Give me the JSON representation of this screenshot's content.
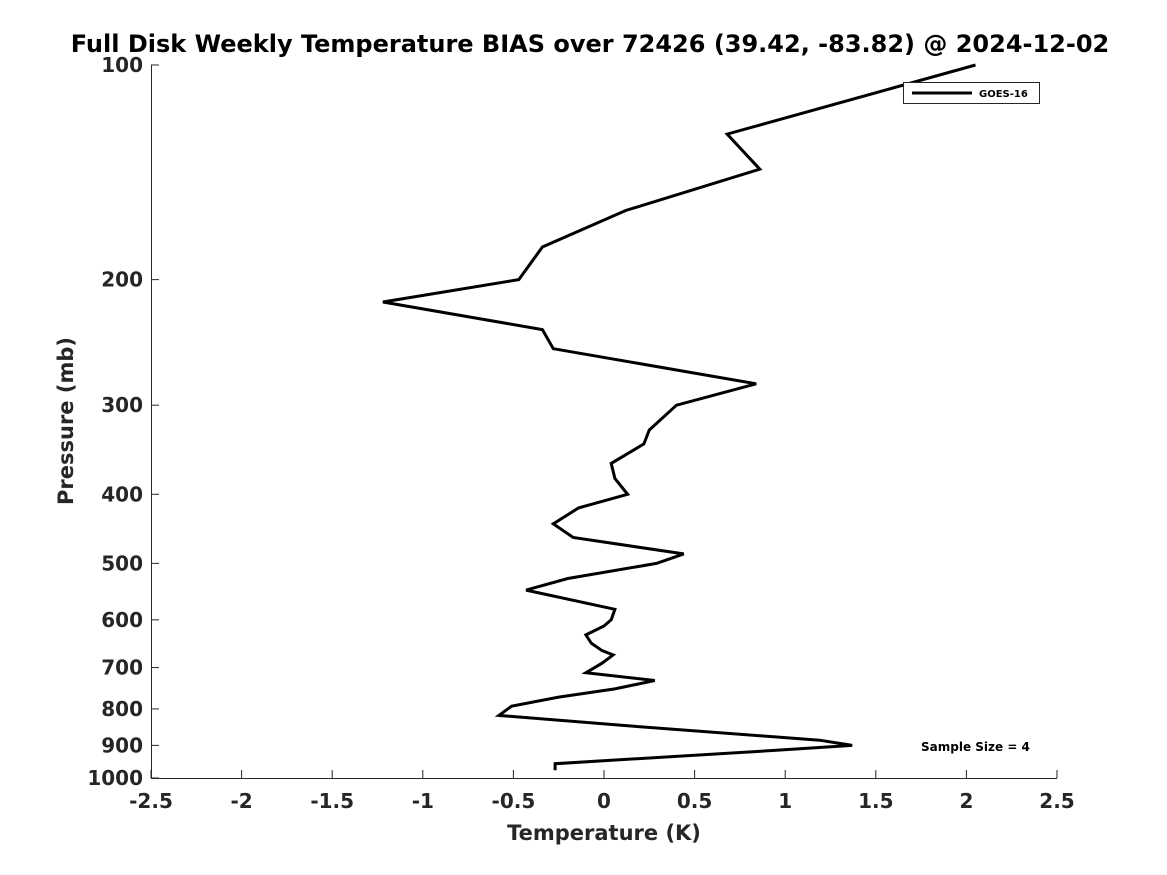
{
  "chart_data": {
    "type": "line",
    "title": "Full Disk Weekly Temperature BIAS over 72426 (39.42, -83.82) @ 2024-12-02",
    "xlabel": "Temperature (K)",
    "ylabel": "Pressure (mb)",
    "xlim": [
      -2.5,
      2.5
    ],
    "ylim": [
      100,
      1000
    ],
    "y_scale": "log",
    "y_reversed": true,
    "x_ticks": [
      -2.5,
      -2,
      -1.5,
      -1,
      -0.5,
      0,
      0.5,
      1,
      1.5,
      2,
      2.5
    ],
    "x_tick_labels": [
      "-2.5",
      "-2",
      "-1.5",
      "-1",
      "-0.5",
      "0",
      "0.5",
      "1",
      "1.5",
      "2",
      "2.5"
    ],
    "y_ticks": [
      100,
      200,
      300,
      400,
      500,
      600,
      700,
      800,
      900,
      1000
    ],
    "y_tick_labels": [
      "100",
      "200",
      "300",
      "400",
      "500",
      "600",
      "700",
      "800",
      "900",
      "1000"
    ],
    "grid": false,
    "legend_position": "top-right",
    "series": [
      {
        "name": "GOES-16",
        "color": "#000000",
        "points": [
          {
            "x": 2.05,
            "p": 100
          },
          {
            "x": 0.68,
            "p": 125
          },
          {
            "x": 0.86,
            "p": 140
          },
          {
            "x": 0.12,
            "p": 160
          },
          {
            "x": -0.34,
            "p": 180
          },
          {
            "x": -0.47,
            "p": 200
          },
          {
            "x": -1.22,
            "p": 215
          },
          {
            "x": -0.34,
            "p": 235
          },
          {
            "x": -0.28,
            "p": 250
          },
          {
            "x": 0.84,
            "p": 280
          },
          {
            "x": 0.4,
            "p": 300
          },
          {
            "x": 0.25,
            "p": 325
          },
          {
            "x": 0.22,
            "p": 340
          },
          {
            "x": 0.04,
            "p": 362
          },
          {
            "x": 0.06,
            "p": 380
          },
          {
            "x": 0.13,
            "p": 400
          },
          {
            "x": -0.14,
            "p": 418
          },
          {
            "x": -0.28,
            "p": 440
          },
          {
            "x": -0.17,
            "p": 460
          },
          {
            "x": 0.44,
            "p": 485
          },
          {
            "x": 0.29,
            "p": 500
          },
          {
            "x": -0.2,
            "p": 525
          },
          {
            "x": -0.43,
            "p": 545
          },
          {
            "x": 0.06,
            "p": 580
          },
          {
            "x": 0.04,
            "p": 600
          },
          {
            "x": 0.0,
            "p": 612
          },
          {
            "x": -0.1,
            "p": 630
          },
          {
            "x": -0.07,
            "p": 647
          },
          {
            "x": -0.01,
            "p": 663
          },
          {
            "x": 0.05,
            "p": 672
          },
          {
            "x": -0.01,
            "p": 690
          },
          {
            "x": -0.1,
            "p": 712
          },
          {
            "x": 0.28,
            "p": 730
          },
          {
            "x": 0.06,
            "p": 750
          },
          {
            "x": -0.25,
            "p": 770
          },
          {
            "x": -0.51,
            "p": 793
          },
          {
            "x": -0.58,
            "p": 817
          },
          {
            "x": 0.13,
            "p": 845
          },
          {
            "x": 1.19,
            "p": 885
          },
          {
            "x": 1.37,
            "p": 900
          },
          {
            "x": 0.93,
            "p": 915
          },
          {
            "x": -0.27,
            "p": 955
          },
          {
            "x": -0.27,
            "p": 975
          }
        ]
      }
    ],
    "annotation": "Sample Size = 4"
  }
}
